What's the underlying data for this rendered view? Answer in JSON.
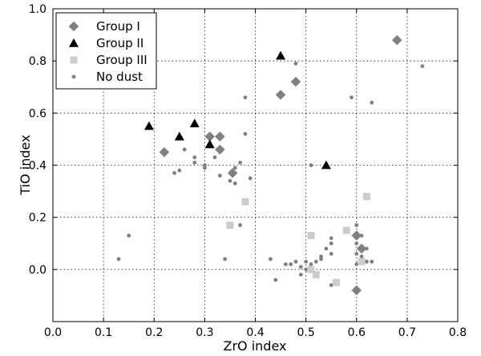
{
  "chart_data": {
    "type": "scatter",
    "title": "",
    "xlabel": "ZrO index",
    "ylabel": "TiO index",
    "xlim": [
      0.0,
      0.8
    ],
    "ylim": [
      -0.2,
      1.0
    ],
    "xticks": [
      0.0,
      0.1,
      0.2,
      0.3,
      0.4,
      0.5,
      0.6,
      0.7,
      0.8
    ],
    "yticks": [
      0.0,
      0.2,
      0.4,
      0.6,
      0.8,
      1.0
    ],
    "xtick_labels": [
      "0.0",
      "0.1",
      "0.2",
      "0.3",
      "0.4",
      "0.5",
      "0.6",
      "0.7",
      "0.8"
    ],
    "ytick_labels": [
      "0.0",
      "0.2",
      "0.4",
      "0.6",
      "0.8",
      "1.0"
    ],
    "grid": true,
    "legend_position": "top-left",
    "series": [
      {
        "name": "Group I",
        "marker": "diamond",
        "color": "#808080",
        "points": [
          [
            0.68,
            0.88
          ],
          [
            0.48,
            0.72
          ],
          [
            0.45,
            0.67
          ],
          [
            0.31,
            0.51
          ],
          [
            0.33,
            0.51
          ],
          [
            0.33,
            0.46
          ],
          [
            0.22,
            0.45
          ],
          [
            0.355,
            0.37
          ],
          [
            0.6,
            0.13
          ],
          [
            0.61,
            0.08
          ],
          [
            0.6,
            -0.08
          ]
        ]
      },
      {
        "name": "Group II",
        "marker": "triangle",
        "color": "#000000",
        "points": [
          [
            0.45,
            0.82
          ],
          [
            0.19,
            0.55
          ],
          [
            0.25,
            0.51
          ],
          [
            0.28,
            0.56
          ],
          [
            0.31,
            0.48
          ],
          [
            0.54,
            0.4
          ]
        ]
      },
      {
        "name": "Group III",
        "marker": "square",
        "color": "#cccccc",
        "points": [
          [
            0.62,
            0.28
          ],
          [
            0.38,
            0.26
          ],
          [
            0.35,
            0.17
          ],
          [
            0.58,
            0.15
          ],
          [
            0.51,
            0.13
          ],
          [
            0.61,
            0.03
          ],
          [
            0.51,
            0.0
          ],
          [
            0.52,
            -0.02
          ],
          [
            0.56,
            -0.05
          ]
        ]
      },
      {
        "name": "No dust",
        "marker": "circle",
        "color": "#808080",
        "points": [
          [
            0.48,
            0.79
          ],
          [
            0.73,
            0.78
          ],
          [
            0.59,
            0.66
          ],
          [
            0.38,
            0.66
          ],
          [
            0.63,
            0.64
          ],
          [
            0.38,
            0.52
          ],
          [
            0.26,
            0.46
          ],
          [
            0.28,
            0.43
          ],
          [
            0.32,
            0.43
          ],
          [
            0.37,
            0.41
          ],
          [
            0.28,
            0.41
          ],
          [
            0.3,
            0.4
          ],
          [
            0.24,
            0.37
          ],
          [
            0.25,
            0.38
          ],
          [
            0.3,
            0.39
          ],
          [
            0.36,
            0.39
          ],
          [
            0.51,
            0.4
          ],
          [
            0.33,
            0.36
          ],
          [
            0.35,
            0.34
          ],
          [
            0.36,
            0.33
          ],
          [
            0.39,
            0.35
          ],
          [
            0.37,
            0.17
          ],
          [
            0.15,
            0.13
          ],
          [
            0.13,
            0.04
          ],
          [
            0.34,
            0.04
          ],
          [
            0.43,
            0.04
          ],
          [
            0.46,
            0.02
          ],
          [
            0.47,
            0.02
          ],
          [
            0.48,
            0.03
          ],
          [
            0.49,
            0.01
          ],
          [
            0.5,
            0.03
          ],
          [
            0.51,
            0.02
          ],
          [
            0.52,
            0.03
          ],
          [
            0.53,
            0.04
          ],
          [
            0.53,
            0.05
          ],
          [
            0.54,
            0.08
          ],
          [
            0.55,
            0.1
          ],
          [
            0.55,
            0.12
          ],
          [
            0.55,
            0.06
          ],
          [
            0.5,
            0.0
          ],
          [
            0.49,
            -0.02
          ],
          [
            0.44,
            -0.04
          ],
          [
            0.55,
            -0.06
          ],
          [
            0.6,
            0.17
          ],
          [
            0.6,
            0.14
          ],
          [
            0.61,
            0.13
          ],
          [
            0.6,
            0.1
          ],
          [
            0.62,
            0.08
          ],
          [
            0.61,
            0.05
          ],
          [
            0.6,
            0.06
          ],
          [
            0.62,
            0.03
          ],
          [
            0.63,
            0.03
          ],
          [
            0.6,
            0.02
          ]
        ]
      }
    ]
  }
}
